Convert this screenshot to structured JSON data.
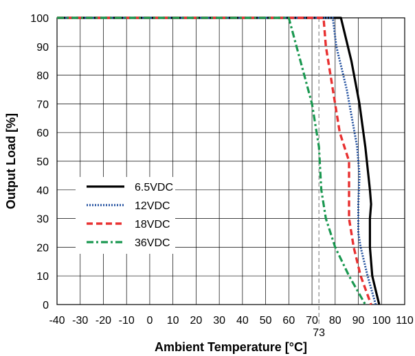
{
  "chart_data": {
    "type": "line",
    "title": "",
    "xlabel": "Ambient Temperature [°C]",
    "ylabel": "Output Load [%]",
    "xlim": [
      -40,
      110
    ],
    "ylim": [
      0,
      100
    ],
    "x_ticks": [
      -40,
      -30,
      -20,
      -10,
      0,
      10,
      20,
      30,
      40,
      50,
      60,
      70,
      80,
      90,
      100,
      110
    ],
    "y_ticks": [
      0,
      10,
      20,
      30,
      40,
      50,
      60,
      70,
      80,
      90,
      100
    ],
    "grid": true,
    "legend_position": "left-center",
    "annotation": {
      "label": "73",
      "x": 73,
      "style": "dashed vertical line"
    },
    "series": [
      {
        "name": "6.5VDC",
        "color": "#000000",
        "dash": "solid",
        "x": [
          -40,
          82.5,
          87,
          90.5,
          93,
          95,
          95.5,
          95,
          95,
          96,
          97.5,
          99
        ],
        "y": [
          100,
          100,
          85,
          70,
          55,
          40,
          35,
          30,
          20,
          10,
          5,
          0
        ]
      },
      {
        "name": "12VDC",
        "color": "#1f4e9e",
        "dash": "dotted",
        "x": [
          -40,
          79,
          80.5,
          85,
          89.5,
          90.5,
          90,
          90,
          91,
          94,
          97.5
        ],
        "y": [
          100,
          100,
          90,
          75,
          55,
          45,
          35,
          25,
          20,
          10,
          0
        ]
      },
      {
        "name": "18VDC",
        "color": "#e83030",
        "dash": "dashed",
        "x": [
          -40,
          75,
          76,
          79,
          82,
          86,
          86,
          88,
          91,
          95.5
        ],
        "y": [
          100,
          100,
          90,
          75,
          60,
          50,
          30,
          20,
          10,
          0
        ]
      },
      {
        "name": "36VDC",
        "color": "#1a9850",
        "dash": "dashdot",
        "x": [
          -40,
          60,
          65,
          70,
          73,
          74,
          76,
          80,
          86,
          93
        ],
        "y": [
          100,
          100,
          85,
          70,
          55,
          40,
          30,
          20,
          10,
          0
        ]
      }
    ]
  }
}
